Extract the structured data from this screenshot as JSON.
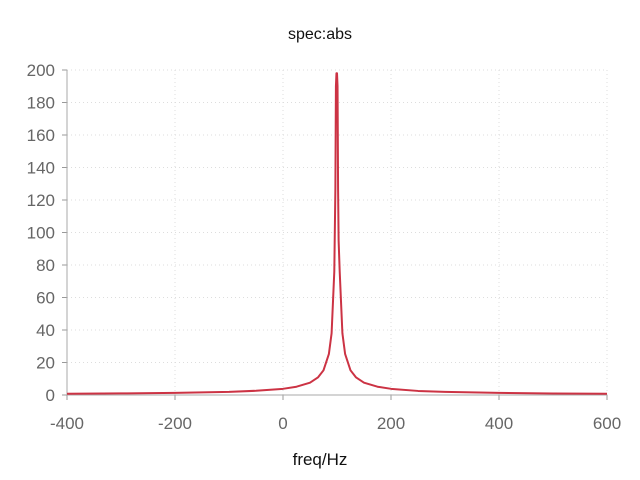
{
  "chart_data": {
    "type": "line",
    "title": "spec:abs",
    "xlabel": "freq/Hz",
    "ylabel": "",
    "xlim": [
      -400,
      600
    ],
    "ylim": [
      0,
      200
    ],
    "xticks": [
      -400,
      -200,
      0,
      200,
      400,
      600
    ],
    "yticks": [
      0,
      20,
      40,
      60,
      80,
      100,
      120,
      140,
      160,
      180,
      200
    ],
    "grid": true,
    "legend": "none",
    "series": [
      {
        "color": "#cc3344",
        "x": [
          -400,
          -300,
          -200,
          -100,
          -50,
          0,
          25,
          50,
          65,
          75,
          85,
          90,
          95,
          97,
          98,
          99,
          100,
          101,
          102,
          103,
          105,
          110,
          115,
          125,
          135,
          150,
          175,
          200,
          250,
          300,
          400,
          500,
          600
        ],
        "y": [
          0.8,
          1.0,
          1.3,
          1.9,
          2.6,
          3.8,
          5.1,
          7.6,
          10.9,
          15.2,
          25.3,
          38,
          76,
          127,
          190,
          198,
          198,
          190,
          127,
          95,
          76,
          38,
          25.3,
          15.2,
          10.9,
          7.6,
          5.1,
          3.8,
          2.5,
          1.9,
          1.3,
          0.95,
          0.76
        ]
      }
    ]
  }
}
